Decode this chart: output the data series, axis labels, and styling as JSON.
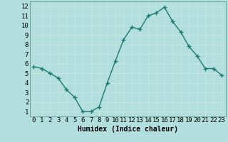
{
  "x": [
    0,
    1,
    2,
    3,
    4,
    5,
    6,
    7,
    8,
    9,
    10,
    11,
    12,
    13,
    14,
    15,
    16,
    17,
    18,
    19,
    20,
    21,
    22,
    23
  ],
  "y": [
    5.7,
    5.5,
    5.0,
    4.5,
    3.3,
    2.5,
    1.0,
    1.0,
    1.5,
    4.0,
    6.3,
    8.5,
    9.8,
    9.6,
    11.0,
    11.3,
    11.9,
    10.4,
    9.3,
    7.8,
    6.8,
    5.5,
    5.5,
    4.8
  ],
  "line_color": "#1a7a6e",
  "marker": "+",
  "marker_size": 4,
  "background_color": "#b2dede",
  "grid_color": "#c8e8e0",
  "xlabel": "Humidex (Indice chaleur)",
  "xlabel_fontsize": 7,
  "tick_fontsize": 6.5,
  "line_width": 1.0,
  "xlim": [
    -0.5,
    23.5
  ],
  "ylim": [
    0.5,
    12.5
  ],
  "yticks": [
    1,
    2,
    3,
    4,
    5,
    6,
    7,
    8,
    9,
    10,
    11,
    12
  ],
  "xtick_labels": [
    "0",
    "1",
    "2",
    "3",
    "4",
    "5",
    "6",
    "7",
    "8",
    "9",
    "10",
    "11",
    "12",
    "13",
    "14",
    "15",
    "16",
    "17",
    "18",
    "19",
    "20",
    "21",
    "22",
    "23"
  ],
  "ytick_labels": [
    "1",
    "2",
    "3",
    "4",
    "5",
    "6",
    "7",
    "8",
    "9",
    "10",
    "11",
    "12"
  ]
}
